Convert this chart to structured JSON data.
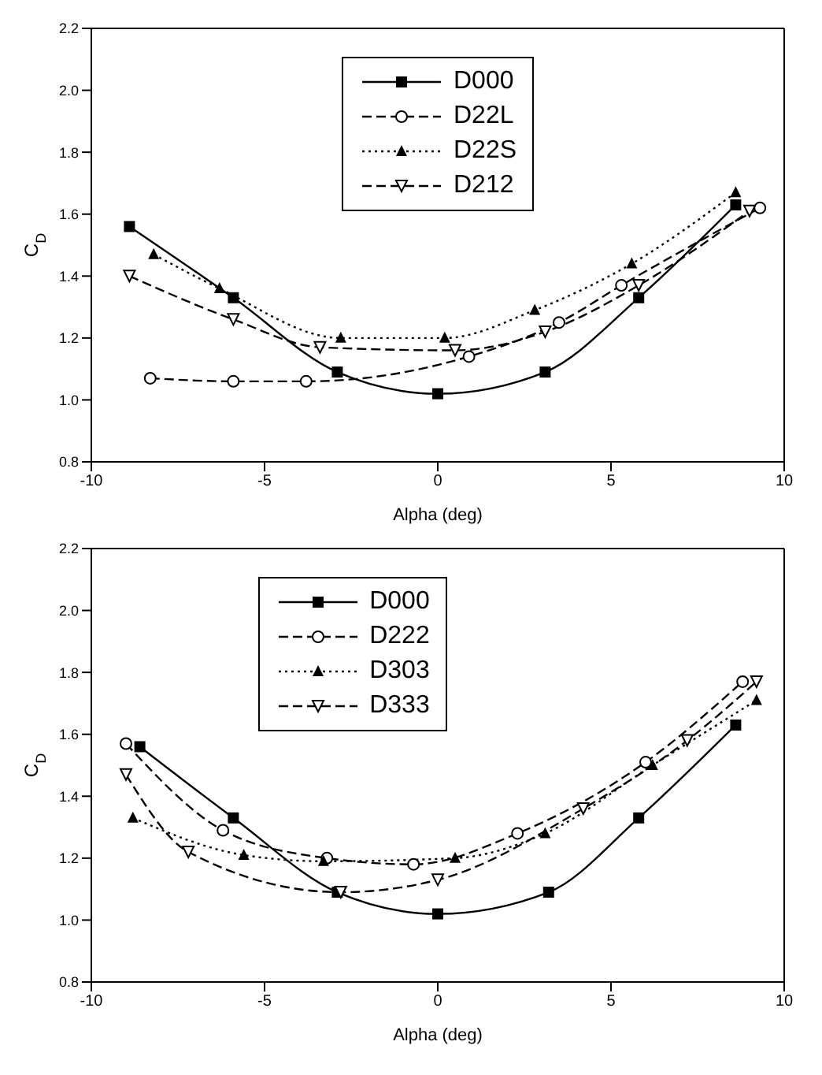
{
  "chart_data": [
    {
      "type": "line",
      "xlabel": "Alpha (deg)",
      "ylabel": "C$_{D}$",
      "xlim": [
        -10,
        10
      ],
      "xticks": [
        -10,
        -5,
        0,
        5,
        10
      ],
      "ylim": [
        0.8,
        2.2
      ],
      "yticks": [
        {
          "value": 0.8,
          "label": "0.8"
        },
        {
          "value": 1.0,
          "label": "1.0"
        },
        {
          "value": 1.2,
          "label": "1.2"
        },
        {
          "value": 1.4,
          "label": "1.4"
        },
        {
          "value": 1.6,
          "label": "1.6"
        },
        {
          "value": 1.8,
          "label": "1.8"
        },
        {
          "value": 2.0,
          "label": "2.0"
        },
        {
          "value": 2.2,
          "label": "2.2"
        }
      ],
      "legend": "top",
      "series": [
        {
          "name": "D000",
          "color": "#000000",
          "marker": "square",
          "line_style": "solid",
          "x": [
            -8.9,
            -5.9,
            -2.9,
            0,
            3.1,
            5.8,
            8.6
          ],
          "values": [
            1.56,
            1.33,
            1.09,
            1.02,
            1.09,
            1.33,
            1.63
          ]
        },
        {
          "name": "D22L",
          "color": "#000000",
          "marker": "circle",
          "line_style": "dashed",
          "x": [
            -8.3,
            -5.9,
            -3.8,
            0.9,
            3.5,
            5.3,
            9.3
          ],
          "values": [
            1.07,
            1.06,
            1.06,
            1.14,
            1.25,
            1.37,
            1.62
          ]
        },
        {
          "name": "D22S",
          "color": "#000000",
          "marker": "triangle",
          "line_style": "dotted",
          "x": [
            -8.2,
            -6.3,
            -2.8,
            0.2,
            2.8,
            5.6,
            8.6
          ],
          "values": [
            1.47,
            1.36,
            1.2,
            1.2,
            1.29,
            1.44,
            1.67
          ]
        },
        {
          "name": "D212",
          "color": "#000000",
          "marker": "triangle-down",
          "line_style": "dashed",
          "x": [
            -8.9,
            -5.9,
            -3.4,
            0.5,
            3.1,
            5.8,
            9.0
          ],
          "values": [
            1.4,
            1.26,
            1.17,
            1.16,
            1.22,
            1.37,
            1.61
          ]
        }
      ]
    },
    {
      "type": "line",
      "xlabel": "Alpha (deg)",
      "ylabel": "C$_{D}$",
      "xlim": [
        -10,
        10
      ],
      "xticks": [
        -10,
        -5,
        0,
        5,
        10
      ],
      "ylim": [
        0.8,
        2.2
      ],
      "yticks": [
        {
          "value": 0.8,
          "label": "0.8"
        },
        {
          "value": 1.0,
          "label": "1.0"
        },
        {
          "value": 1.2,
          "label": "1.2"
        },
        {
          "value": 1.4,
          "label": "1.4"
        },
        {
          "value": 1.6,
          "label": "1.6"
        },
        {
          "value": 1.8,
          "label": "1.8"
        },
        {
          "value": 2.0,
          "label": "2.0"
        },
        {
          "value": 2.2,
          "label": "2.2"
        }
      ],
      "legend": "top left",
      "series": [
        {
          "name": "D000",
          "color": "#000000",
          "marker": "square",
          "line_style": "solid",
          "x": [
            -8.6,
            -5.9,
            -2.9,
            0,
            3.2,
            5.8,
            8.6
          ],
          "values": [
            1.56,
            1.33,
            1.09,
            1.02,
            1.09,
            1.33,
            1.63
          ]
        },
        {
          "name": "D222",
          "color": "#000000",
          "marker": "circle",
          "line_style": "dashed",
          "x": [
            -9.0,
            -6.2,
            -3.2,
            -0.7,
            2.3,
            6.0,
            8.8
          ],
          "values": [
            1.57,
            1.29,
            1.2,
            1.18,
            1.28,
            1.51,
            1.77
          ]
        },
        {
          "name": "D303",
          "color": "#000000",
          "marker": "triangle",
          "line_style": "dotted",
          "x": [
            -8.8,
            -5.6,
            -3.3,
            0.5,
            3.1,
            6.2,
            9.2
          ],
          "values": [
            1.33,
            1.21,
            1.19,
            1.2,
            1.28,
            1.5,
            1.71
          ]
        },
        {
          "name": "D333",
          "color": "#000000",
          "marker": "triangle-down",
          "line_style": "dashed",
          "x": [
            -9.0,
            -7.2,
            -2.8,
            0,
            4.2,
            7.2,
            9.2
          ],
          "values": [
            1.47,
            1.22,
            1.09,
            1.13,
            1.36,
            1.58,
            1.77
          ]
        }
      ]
    }
  ]
}
